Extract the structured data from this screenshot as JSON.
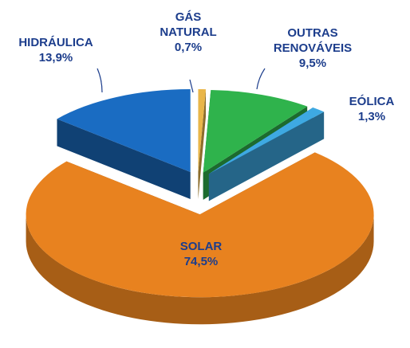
{
  "chart_data": {
    "type": "pie",
    "categories": [
      "HIDRÁULICA",
      "GÁS NATURAL",
      "OUTRAS RENOVÁVEIS",
      "EÓLICA",
      "SOLAR"
    ],
    "values": [
      13.9,
      0.7,
      9.5,
      1.3,
      74.5
    ],
    "value_labels": [
      "13,9%",
      "0,7%",
      "9,5%",
      "1,3%",
      "74,5%"
    ],
    "colors": [
      "#1a6cc2",
      "#e9b649",
      "#2fb34c",
      "#3ea9e2",
      "#e8821f"
    ]
  }
}
